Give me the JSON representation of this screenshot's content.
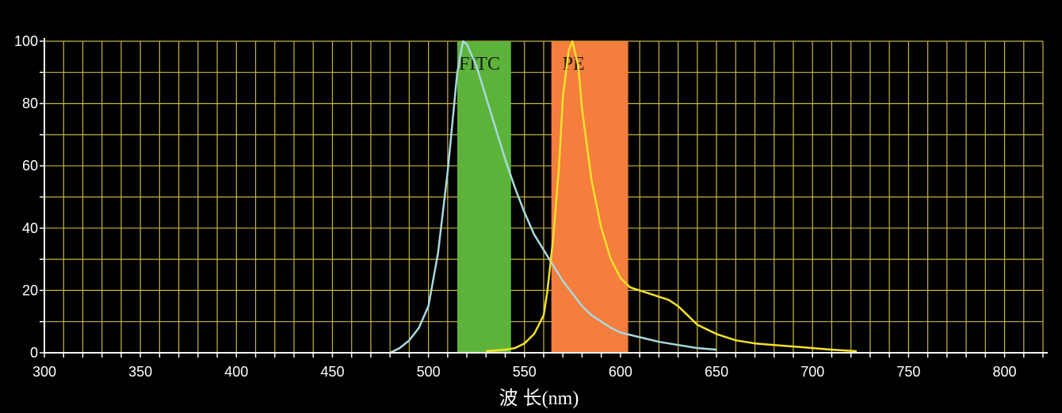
{
  "chart_data": {
    "type": "line",
    "xlabel": "波 长(nm)",
    "ylabel": "",
    "xlim": [
      300,
      820
    ],
    "ylim": [
      0,
      100
    ],
    "x_ticks": [
      300,
      350,
      400,
      450,
      500,
      550,
      600,
      650,
      700,
      750,
      800
    ],
    "y_ticks": [
      0,
      20,
      40,
      60,
      80,
      100
    ],
    "grid": true,
    "grid_color": "#c9b33a",
    "background": "#000000",
    "bands": [
      {
        "name": "FITC",
        "x_start": 515,
        "x_end": 543,
        "color": "#5db33a"
      },
      {
        "name": "PE",
        "x_start": 564,
        "x_end": 604,
        "color": "#f57d3d"
      }
    ],
    "series": [
      {
        "color": "#a8d8e0",
        "x": [
          480,
          485,
          490,
          495,
          500,
          505,
          510,
          515,
          518,
          520,
          525,
          530,
          535,
          540,
          545,
          550,
          555,
          560,
          565,
          570,
          575,
          580,
          585,
          590,
          595,
          600,
          610,
          620,
          630,
          640,
          650
        ],
        "y": [
          0,
          1.5,
          4,
          8,
          15,
          32,
          58,
          90,
          100,
          99,
          92,
          82,
          72,
          62,
          53,
          45,
          38,
          33,
          28,
          23,
          19,
          15,
          12,
          10,
          8,
          6.5,
          5,
          3.5,
          2.5,
          1.5,
          1
        ]
      },
      {
        "color": "#f2e12a",
        "x": [
          530,
          540,
          545,
          550,
          555,
          560,
          562,
          565,
          568,
          570,
          573,
          575,
          578,
          580,
          585,
          590,
          595,
          600,
          605,
          610,
          615,
          620,
          625,
          630,
          635,
          640,
          650,
          660,
          670,
          680,
          690,
          700,
          710,
          723
        ],
        "y": [
          0.5,
          1,
          1.5,
          3,
          6,
          12,
          20,
          37,
          60,
          82,
          97,
          100,
          92,
          78,
          55,
          40,
          30,
          24,
          21,
          20,
          19,
          18,
          17,
          15,
          12,
          9,
          6,
          4,
          3,
          2.5,
          2,
          1.5,
          1,
          0.5
        ]
      }
    ]
  }
}
